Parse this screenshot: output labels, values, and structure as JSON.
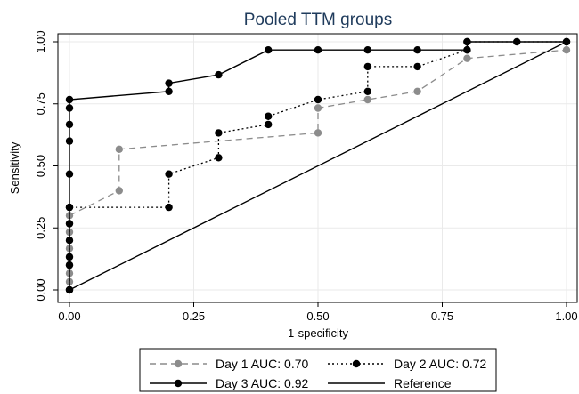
{
  "chart_data": {
    "type": "line",
    "title": "Pooled TTM groups",
    "xlabel": "1-specificity",
    "ylabel": "Sensitivity",
    "xlim": [
      0,
      1
    ],
    "ylim": [
      0,
      1
    ],
    "x_ticks": [
      "0.00",
      "0.25",
      "0.50",
      "0.75",
      "1.00"
    ],
    "y_ticks": [
      "0.00",
      "0.25",
      "0.50",
      "0.75",
      "1.00"
    ],
    "x_tick_values": [
      0,
      0.25,
      0.5,
      0.75,
      1
    ],
    "y_tick_values": [
      0,
      0.25,
      0.5,
      0.75,
      1
    ],
    "grid": true,
    "legend_position": "bottom",
    "series": [
      {
        "name": "Day 1 AUC: 0.70",
        "color": "#8c8c8c",
        "line": "dashed",
        "marker": true,
        "points": [
          [
            0,
            0
          ],
          [
            0,
            0.033
          ],
          [
            0,
            0.067
          ],
          [
            0,
            0.1
          ],
          [
            0,
            0.133
          ],
          [
            0,
            0.167
          ],
          [
            0,
            0.233
          ],
          [
            0,
            0.267
          ],
          [
            0,
            0.3
          ],
          [
            0.1,
            0.4
          ],
          [
            0.1,
            0.567
          ],
          [
            0.5,
            0.633
          ],
          [
            0.5,
            0.733
          ],
          [
            0.6,
            0.767
          ],
          [
            0.7,
            0.8
          ],
          [
            0.8,
            0.933
          ],
          [
            1,
            0.967
          ],
          [
            1,
            1
          ]
        ]
      },
      {
        "name": "Day 2 AUC: 0.72",
        "color": "#000000",
        "line": "dotted",
        "marker": true,
        "points": [
          [
            0,
            0
          ],
          [
            0,
            0.333
          ],
          [
            0.2,
            0.333
          ],
          [
            0.2,
            0.467
          ],
          [
            0.3,
            0.533
          ],
          [
            0.3,
            0.633
          ],
          [
            0.4,
            0.667
          ],
          [
            0.4,
            0.7
          ],
          [
            0.5,
            0.767
          ],
          [
            0.6,
            0.8
          ],
          [
            0.6,
            0.9
          ],
          [
            0.7,
            0.9
          ],
          [
            0.8,
            0.967
          ],
          [
            0.8,
            1
          ],
          [
            1,
            1
          ]
        ]
      },
      {
        "name": "Day 3 AUC: 0.92",
        "color": "#000000",
        "line": "solid",
        "marker": true,
        "points": [
          [
            0,
            0
          ],
          [
            0,
            0.1
          ],
          [
            0,
            0.133
          ],
          [
            0,
            0.2
          ],
          [
            0,
            0.267
          ],
          [
            0,
            0.333
          ],
          [
            0,
            0.467
          ],
          [
            0,
            0.6
          ],
          [
            0,
            0.667
          ],
          [
            0,
            0.733
          ],
          [
            0,
            0.767
          ],
          [
            0.2,
            0.8
          ],
          [
            0.2,
            0.833
          ],
          [
            0.3,
            0.867
          ],
          [
            0.4,
            0.967
          ],
          [
            0.5,
            0.967
          ],
          [
            0.6,
            0.967
          ],
          [
            0.7,
            0.967
          ],
          [
            0.8,
            0.967
          ],
          [
            0.8,
            1
          ],
          [
            0.9,
            1
          ],
          [
            1,
            1
          ]
        ]
      },
      {
        "name": "Reference",
        "color": "#000000",
        "line": "solid",
        "marker": false,
        "points": [
          [
            0,
            0
          ],
          [
            1,
            1
          ]
        ]
      }
    ]
  }
}
